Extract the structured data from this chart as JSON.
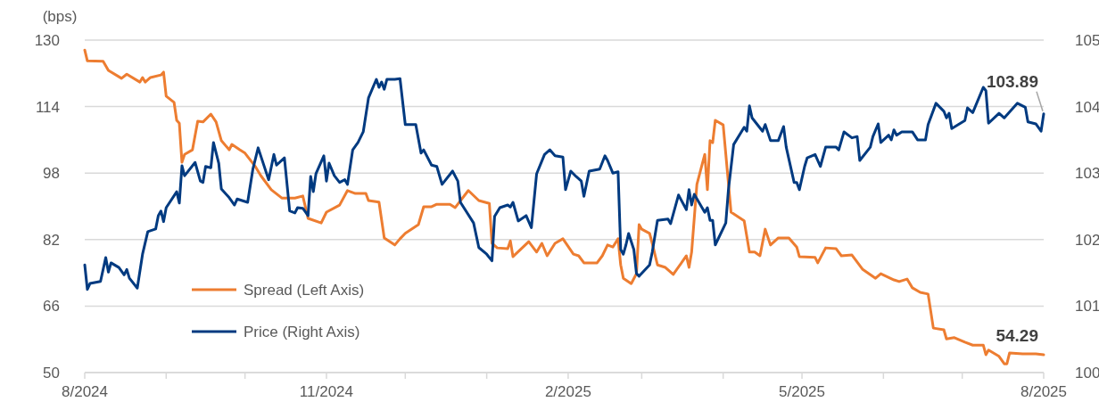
{
  "chart_data": {
    "type": "line",
    "ylabel": "(bps)",
    "xlim": [
      "2024-08-01",
      "2025-08-01"
    ],
    "xticks": [
      {
        "value": "2024-08-01",
        "label": "8/2024"
      },
      {
        "value": "2024-09-01",
        "label": null
      },
      {
        "value": "2024-10-01",
        "label": null
      },
      {
        "value": "2024-11-01",
        "label": "11/2024"
      },
      {
        "value": "2024-12-01",
        "label": null
      },
      {
        "value": "2025-01-01",
        "label": null
      },
      {
        "value": "2025-02-01",
        "label": "2/2025"
      },
      {
        "value": "2025-03-01",
        "label": null
      },
      {
        "value": "2025-04-01",
        "label": null
      },
      {
        "value": "2025-05-01",
        "label": "5/2025"
      },
      {
        "value": "2025-06-01",
        "label": null
      },
      {
        "value": "2025-07-01",
        "label": null
      },
      {
        "value": "2025-08-01",
        "label": "8/2025"
      }
    ],
    "ylim": [
      50,
      130
    ],
    "yticks": [
      50,
      66,
      82,
      98,
      114,
      130
    ],
    "y2lim": [
      100,
      105
    ],
    "y2ticks": [
      100,
      101,
      102,
      103,
      104,
      105
    ],
    "grid": "y",
    "legend": "bottom left",
    "line_style": "solid",
    "marker": "none",
    "series": [
      {
        "name": "Spread (Left Axis)",
        "color": "#ed7d31",
        "x": [
          "2024-08-01",
          "2024-08-02",
          "2024-08-08",
          "2024-08-10",
          "2024-08-15",
          "2024-08-17",
          "2024-08-22",
          "2024-08-23",
          "2024-08-24",
          "2024-08-26",
          "2024-08-30",
          "2024-08-31",
          "2024-09-01",
          "2024-09-04",
          "2024-09-05",
          "2024-09-06",
          "2024-09-07",
          "2024-09-08",
          "2024-09-11",
          "2024-09-13",
          "2024-09-15",
          "2024-09-18",
          "2024-09-20",
          "2024-09-22",
          "2024-09-25",
          "2024-09-26",
          "2024-09-29",
          "2024-10-01",
          "2024-10-05",
          "2024-10-07",
          "2024-10-11",
          "2024-10-15",
          "2024-10-20",
          "2024-10-23",
          "2024-10-25",
          "2024-10-30",
          "2024-11-01",
          "2024-11-06",
          "2024-11-09",
          "2024-11-12",
          "2024-11-16",
          "2024-11-17",
          "2024-11-21",
          "2024-11-23",
          "2024-11-27",
          "2024-11-29",
          "2024-12-01",
          "2024-12-06",
          "2024-12-08",
          "2024-12-11",
          "2024-12-13",
          "2024-12-18",
          "2024-12-20",
          "2024-12-25",
          "2024-12-29",
          "2025-01-02",
          "2025-01-03",
          "2025-01-05",
          "2025-01-09",
          "2025-01-10",
          "2025-01-11",
          "2025-01-17",
          "2025-01-20",
          "2025-01-22",
          "2025-01-24",
          "2025-01-27",
          "2025-01-30",
          "2025-02-03",
          "2025-02-05",
          "2025-02-07",
          "2025-02-12",
          "2025-02-14",
          "2025-02-16",
          "2025-02-18",
          "2025-02-20",
          "2025-02-21",
          "2025-02-22",
          "2025-02-25",
          "2025-02-27",
          "2025-02-28",
          "2025-03-01",
          "2025-03-04",
          "2025-03-05",
          "2025-03-07",
          "2025-03-10",
          "2025-03-13",
          "2025-03-18",
          "2025-03-19",
          "2025-03-20",
          "2025-03-22",
          "2025-03-25",
          "2025-03-26",
          "2025-03-27",
          "2025-03-28",
          "2025-03-29",
          "2025-04-01",
          "2025-04-04",
          "2025-04-09",
          "2025-04-11",
          "2025-04-13",
          "2025-04-15",
          "2025-04-17",
          "2025-04-19",
          "2025-04-22",
          "2025-04-26",
          "2025-04-29",
          "2025-04-30",
          "2025-05-06",
          "2025-05-07",
          "2025-05-10",
          "2025-05-14",
          "2025-05-16",
          "2025-05-20",
          "2025-05-24",
          "2025-05-29",
          "2025-05-31",
          "2025-06-05",
          "2025-06-07",
          "2025-06-10",
          "2025-06-12",
          "2025-06-15",
          "2025-06-18",
          "2025-06-20",
          "2025-06-24",
          "2025-06-25",
          "2025-06-28",
          "2025-07-02",
          "2025-07-05",
          "2025-07-09",
          "2025-07-10",
          "2025-07-11",
          "2025-07-15",
          "2025-07-17",
          "2025-07-18",
          "2025-07-19",
          "2025-07-24",
          "2025-07-29",
          "2025-08-01"
        ],
        "values": [
          127.6,
          125,
          124.9,
          122.7,
          120.8,
          121.8,
          119.9,
          121,
          119.9,
          121,
          121.6,
          122.3,
          116.5,
          115,
          110.7,
          110,
          100.6,
          102.5,
          103.6,
          110.5,
          110.3,
          112.2,
          110.3,
          105.8,
          103.6,
          104.9,
          103.6,
          102.8,
          99.5,
          97.4,
          94,
          92,
          92,
          92.5,
          87.1,
          86,
          88.6,
          90.3,
          93.8,
          93.1,
          93.1,
          91.4,
          91,
          82.4,
          80.7,
          82.2,
          83.5,
          85.6,
          89.9,
          89.9,
          90.5,
          90.5,
          89.7,
          93.8,
          91.4,
          90.7,
          81.1,
          80,
          79.8,
          81.7,
          77.9,
          81.5,
          79,
          81.1,
          78.1,
          81.1,
          82.2,
          78.5,
          78.1,
          76.4,
          76.4,
          78.1,
          80.7,
          80.2,
          82.2,
          75.9,
          72.7,
          71.4,
          73.8,
          85.6,
          84.5,
          83.5,
          81.1,
          75.9,
          75.3,
          73.6,
          78.1,
          75.3,
          79,
          95.3,
          102.5,
          94,
          105.8,
          105.3,
          110.7,
          109.6,
          88.6,
          86.5,
          79,
          79,
          78.1,
          84.5,
          80.7,
          82.4,
          82.4,
          80.2,
          77.9,
          77.7,
          76.4,
          80,
          79.8,
          78.1,
          78.3,
          74.9,
          72.7,
          73.8,
          72.3,
          71.9,
          72.5,
          70.4,
          69.3,
          68.9,
          60.7,
          60.3,
          58.1,
          58.4,
          57.3,
          56.6,
          56.6,
          54.3,
          55.4,
          53.9,
          52.1,
          52.1,
          54.7,
          54.5,
          54.5,
          54.29
        ],
        "value_labels": [
          null,
          null,
          null,
          null,
          null,
          null,
          null,
          null,
          null,
          null,
          null,
          null,
          null,
          null,
          null,
          null,
          null,
          null,
          null,
          null,
          null,
          null,
          null,
          null,
          null,
          null,
          null,
          null,
          null,
          null,
          null,
          null,
          null,
          null,
          null,
          null,
          null,
          null,
          null,
          null,
          null,
          null,
          null,
          null,
          null,
          null,
          null,
          null,
          null,
          null,
          null,
          null,
          null,
          null,
          null,
          null,
          null,
          null,
          null,
          null,
          null,
          null,
          null,
          null,
          null,
          null,
          null,
          null,
          null,
          null,
          null,
          null,
          null,
          null,
          null,
          null,
          null,
          null,
          null,
          null,
          null,
          null,
          null,
          null,
          null,
          null,
          null,
          null,
          null,
          null,
          null,
          null,
          null,
          null,
          null,
          null,
          null,
          null,
          null,
          null,
          null,
          null,
          null,
          null,
          null,
          null,
          null,
          null,
          null,
          null,
          null,
          null,
          null,
          null,
          null,
          null,
          null,
          null,
          null,
          null,
          null,
          null,
          null,
          null,
          null,
          null,
          null,
          null,
          null,
          null,
          null,
          null,
          null,
          null,
          null,
          null,
          null,
          "54.29"
        ]
      },
      {
        "name": "Price (Right Axis)",
        "color": "#003a80",
        "axis": "y2",
        "x": [
          "2024-08-01",
          "2024-08-02",
          "2024-08-03",
          "2024-08-07",
          "2024-08-09",
          "2024-08-10",
          "2024-08-11",
          "2024-08-14",
          "2024-08-16",
          "2024-08-17",
          "2024-08-18",
          "2024-08-21",
          "2024-08-23",
          "2024-08-25",
          "2024-08-28",
          "2024-08-29",
          "2024-08-30",
          "2024-08-31",
          "2024-09-01",
          "2024-09-05",
          "2024-09-06",
          "2024-09-07",
          "2024-09-08",
          "2024-09-12",
          "2024-09-14",
          "2024-09-15",
          "2024-09-16",
          "2024-09-18",
          "2024-09-19",
          "2024-09-21",
          "2024-09-22",
          "2024-09-25",
          "2024-09-27",
          "2024-09-28",
          "2024-10-02",
          "2024-10-04",
          "2024-10-06",
          "2024-10-10",
          "2024-10-12",
          "2024-10-13",
          "2024-10-16",
          "2024-10-18",
          "2024-10-20",
          "2024-10-21",
          "2024-10-23",
          "2024-10-25",
          "2024-10-26",
          "2024-10-27",
          "2024-10-28",
          "2024-10-31",
          "2024-11-01",
          "2024-11-02",
          "2024-11-04",
          "2024-11-06",
          "2024-11-08",
          "2024-11-09",
          "2024-11-11",
          "2024-11-13",
          "2024-11-15",
          "2024-11-17",
          "2024-11-20",
          "2024-11-21",
          "2024-11-22",
          "2024-11-23",
          "2024-11-24",
          "2024-11-27",
          "2024-11-29",
          "2024-12-01",
          "2024-12-05",
          "2024-12-07",
          "2024-12-08",
          "2024-12-11",
          "2024-12-13",
          "2024-12-15",
          "2024-12-19",
          "2024-12-21",
          "2024-12-22",
          "2024-12-27",
          "2024-12-29",
          "2025-01-01",
          "2025-01-03",
          "2025-01-04",
          "2025-01-06",
          "2025-01-09",
          "2025-01-10",
          "2025-01-11",
          "2025-01-13",
          "2025-01-16",
          "2025-01-18",
          "2025-01-20",
          "2025-01-23",
          "2025-01-25",
          "2025-01-27",
          "2025-01-30",
          "2025-01-31",
          "2025-02-02",
          "2025-02-04",
          "2025-02-06",
          "2025-02-07",
          "2025-02-09",
          "2025-02-13",
          "2025-02-15",
          "2025-02-16",
          "2025-02-18",
          "2025-02-20",
          "2025-02-21",
          "2025-02-22",
          "2025-02-23",
          "2025-02-24",
          "2025-02-26",
          "2025-02-27",
          "2025-02-28",
          "2025-03-04",
          "2025-03-05",
          "2025-03-07",
          "2025-03-11",
          "2025-03-12",
          "2025-03-15",
          "2025-03-18",
          "2025-03-19",
          "2025-03-20",
          "2025-03-21",
          "2025-03-25",
          "2025-03-26",
          "2025-03-27",
          "2025-03-28",
          "2025-03-29",
          "2025-04-02",
          "2025-04-03",
          "2025-04-05",
          "2025-04-09",
          "2025-04-10",
          "2025-04-11",
          "2025-04-12",
          "2025-04-16",
          "2025-04-17",
          "2025-04-19",
          "2025-04-22",
          "2025-04-24",
          "2025-04-25",
          "2025-04-28",
          "2025-04-29",
          "2025-04-30",
          "2025-05-02",
          "2025-05-03",
          "2025-05-06",
          "2025-05-08",
          "2025-05-10",
          "2025-05-14",
          "2025-05-15",
          "2025-05-17",
          "2025-05-20",
          "2025-05-22",
          "2025-05-23",
          "2025-05-27",
          "2025-05-28",
          "2025-05-30",
          "2025-05-31",
          "2025-06-03",
          "2025-06-04",
          "2025-06-05",
          "2025-06-06",
          "2025-06-08",
          "2025-06-12",
          "2025-06-14",
          "2025-06-17",
          "2025-06-18",
          "2025-06-21",
          "2025-06-24",
          "2025-06-25",
          "2025-06-26",
          "2025-06-27",
          "2025-07-02",
          "2025-07-03",
          "2025-07-05",
          "2025-07-09",
          "2025-07-10",
          "2025-07-11",
          "2025-07-15",
          "2025-07-17",
          "2025-07-22",
          "2025-07-23",
          "2025-07-25",
          "2025-07-26",
          "2025-07-29",
          "2025-07-31",
          "2025-08-01"
        ],
        "values": [
          101.62,
          101.25,
          101.34,
          101.37,
          101.73,
          101.51,
          101.65,
          101.58,
          101.47,
          101.55,
          101.42,
          101.27,
          101.78,
          102.12,
          102.16,
          102.36,
          102.43,
          102.27,
          102.48,
          102.72,
          102.55,
          103.11,
          102.96,
          103.16,
          102.88,
          102.86,
          103.1,
          103.08,
          103.46,
          103.15,
          102.76,
          102.63,
          102.52,
          102.61,
          102.56,
          103.06,
          103.38,
          102.9,
          103.28,
          103.12,
          103.23,
          102.43,
          102.4,
          102.48,
          102.47,
          102.36,
          102.95,
          102.72,
          102.99,
          103.26,
          102.88,
          103.15,
          102.96,
          102.86,
          102.9,
          102.83,
          103.35,
          103.46,
          103.62,
          104.13,
          104.41,
          104.29,
          104.37,
          104.26,
          104.41,
          104.41,
          104.42,
          103.73,
          103.73,
          103.3,
          103.35,
          103.12,
          103.1,
          102.83,
          103.03,
          102.88,
          102.56,
          102.25,
          101.88,
          101.78,
          101.68,
          102.35,
          102.48,
          102.52,
          102.49,
          102.56,
          102.28,
          102.36,
          102.18,
          102.99,
          103.28,
          103.35,
          103.26,
          103.24,
          102.75,
          103.03,
          102.95,
          102.88,
          102.65,
          103.03,
          103.06,
          103.26,
          103.19,
          103.0,
          103.02,
          101.85,
          101.78,
          101.92,
          102.09,
          101.85,
          101.49,
          101.45,
          101.62,
          101.81,
          102.29,
          102.31,
          102.24,
          102.67,
          102.45,
          102.75,
          102.52,
          102.68,
          102.41,
          102.48,
          102.29,
          102.29,
          101.92,
          102.25,
          102.75,
          103.43,
          103.69,
          103.63,
          104.01,
          103.83,
          103.63,
          103.73,
          103.49,
          103.49,
          103.7,
          103.39,
          102.86,
          102.86,
          102.75,
          103.1,
          103.23,
          103.28,
          103.1,
          103.39,
          103.39,
          103.35,
          103.62,
          103.53,
          103.55,
          103.19,
          103.39,
          103.55,
          103.74,
          103.46,
          103.57,
          103.5,
          103.65,
          103.57,
          103.62,
          103.62,
          103.5,
          103.5,
          103.73,
          104.05,
          103.93,
          103.83,
          103.9,
          103.67,
          103.79,
          103.98,
          103.91,
          104.29,
          104.24,
          103.75,
          103.9,
          103.83,
          104.05,
          104.03,
          103.99,
          103.77,
          103.74,
          103.63,
          103.89
        ],
        "value_labels": [
          null,
          null,
          null,
          null,
          null,
          null,
          null,
          null,
          null,
          null,
          null,
          null,
          null,
          null,
          null,
          null,
          null,
          null,
          null,
          null,
          null,
          null,
          null,
          null,
          null,
          null,
          null,
          null,
          null,
          null,
          null,
          null,
          null,
          null,
          null,
          null,
          null,
          null,
          null,
          null,
          null,
          null,
          null,
          null,
          null,
          null,
          null,
          null,
          null,
          null,
          null,
          null,
          null,
          null,
          null,
          null,
          null,
          null,
          null,
          null,
          null,
          null,
          null,
          null,
          null,
          null,
          null,
          null,
          null,
          null,
          null,
          null,
          null,
          null,
          null,
          null,
          null,
          null,
          null,
          null,
          null,
          null,
          null,
          null,
          null,
          null,
          null,
          null,
          null,
          null,
          null,
          null,
          null,
          null,
          null,
          null,
          null,
          null,
          null,
          null,
          null,
          null,
          null,
          null,
          null,
          null,
          null,
          null,
          null,
          null,
          null,
          null,
          null,
          null,
          null,
          null,
          null,
          null,
          null,
          null,
          null,
          null,
          null,
          null,
          null,
          null,
          null,
          null,
          null,
          null,
          null,
          null,
          null,
          null,
          null,
          null,
          null,
          null,
          null,
          null,
          null,
          null,
          null,
          null,
          null,
          null,
          null,
          null,
          null,
          null,
          null,
          null,
          null,
          null,
          null,
          null,
          null,
          null,
          null,
          null,
          null,
          null,
          null,
          null,
          null,
          null,
          null,
          null,
          null,
          null,
          null,
          null,
          null,
          null,
          null,
          null,
          null,
          null,
          null,
          null,
          null,
          null,
          null,
          null,
          null,
          null,
          "103.89"
        ]
      }
    ]
  }
}
